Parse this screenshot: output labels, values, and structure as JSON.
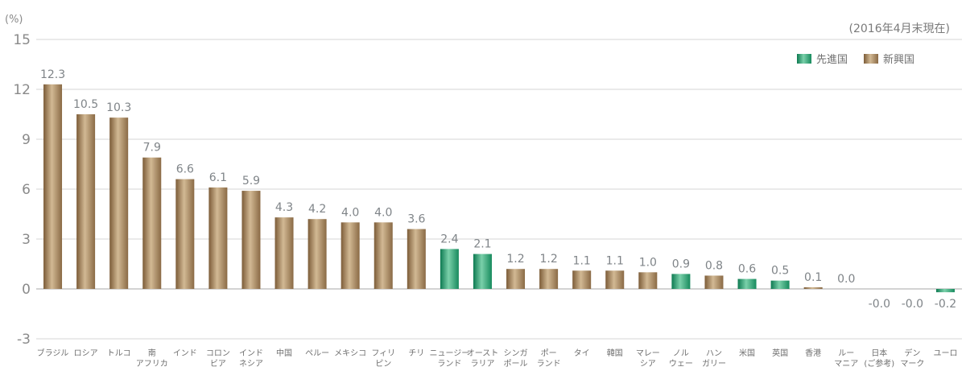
{
  "chart_data": {
    "type": "bar",
    "unit_label": "(%)",
    "note": "(2016年4月末現在)",
    "ylim": [
      -3,
      15
    ],
    "yticks": [
      "-3",
      "0",
      "3",
      "6",
      "9",
      "12",
      "15"
    ],
    "grid": true,
    "legend_position": "top-right",
    "legend": [
      {
        "name": "先進国",
        "color": "#2a9a6e"
      },
      {
        "name": "新興国",
        "color": "#9e7d55"
      }
    ],
    "categories": [
      {
        "label": [
          "ブラジル"
        ],
        "value": 12.3,
        "value_label": "12.3",
        "group": "新興国"
      },
      {
        "label": [
          "ロシア"
        ],
        "value": 10.5,
        "value_label": "10.5",
        "group": "新興国"
      },
      {
        "label": [
          "トルコ"
        ],
        "value": 10.3,
        "value_label": "10.3",
        "group": "新興国"
      },
      {
        "label": [
          "南",
          "アフリカ"
        ],
        "value": 7.9,
        "value_label": "7.9",
        "group": "新興国"
      },
      {
        "label": [
          "インド"
        ],
        "value": 6.6,
        "value_label": "6.6",
        "group": "新興国"
      },
      {
        "label": [
          "コロン",
          "ビア"
        ],
        "value": 6.1,
        "value_label": "6.1",
        "group": "新興国"
      },
      {
        "label": [
          "インド",
          "ネシア"
        ],
        "value": 5.9,
        "value_label": "5.9",
        "group": "新興国"
      },
      {
        "label": [
          "中国"
        ],
        "value": 4.3,
        "value_label": "4.3",
        "group": "新興国"
      },
      {
        "label": [
          "ペルー"
        ],
        "value": 4.2,
        "value_label": "4.2",
        "group": "新興国"
      },
      {
        "label": [
          "メキシコ"
        ],
        "value": 4.0,
        "value_label": "4.0",
        "group": "新興国"
      },
      {
        "label": [
          "フィリ",
          "ピン"
        ],
        "value": 4.0,
        "value_label": "4.0",
        "group": "新興国"
      },
      {
        "label": [
          "チリ"
        ],
        "value": 3.6,
        "value_label": "3.6",
        "group": "新興国"
      },
      {
        "label": [
          "ニュージー",
          "ランド"
        ],
        "value": 2.4,
        "value_label": "2.4",
        "group": "先進国"
      },
      {
        "label": [
          "オースト",
          "ラリア"
        ],
        "value": 2.1,
        "value_label": "2.1",
        "group": "先進国"
      },
      {
        "label": [
          "シンガ",
          "ポール"
        ],
        "value": 1.2,
        "value_label": "1.2",
        "group": "新興国"
      },
      {
        "label": [
          "ポー",
          "ランド"
        ],
        "value": 1.2,
        "value_label": "1.2",
        "group": "新興国"
      },
      {
        "label": [
          "タイ"
        ],
        "value": 1.1,
        "value_label": "1.1",
        "group": "新興国"
      },
      {
        "label": [
          "韓国"
        ],
        "value": 1.1,
        "value_label": "1.1",
        "group": "新興国"
      },
      {
        "label": [
          "マレー",
          "シア"
        ],
        "value": 1.0,
        "value_label": "1.0",
        "group": "新興国"
      },
      {
        "label": [
          "ノル",
          "ウェー"
        ],
        "value": 0.9,
        "value_label": "0.9",
        "group": "先進国"
      },
      {
        "label": [
          "ハン",
          "ガリー"
        ],
        "value": 0.8,
        "value_label": "0.8",
        "group": "新興国"
      },
      {
        "label": [
          "米国"
        ],
        "value": 0.6,
        "value_label": "0.6",
        "group": "先進国"
      },
      {
        "label": [
          "英国"
        ],
        "value": 0.5,
        "value_label": "0.5",
        "group": "先進国"
      },
      {
        "label": [
          "香港"
        ],
        "value": 0.1,
        "value_label": "0.1",
        "group": "新興国"
      },
      {
        "label": [
          "ルー",
          "マニア"
        ],
        "value": 0.0,
        "value_label": "0.0",
        "group": "新興国"
      },
      {
        "label": [
          "日本",
          "(ご参考)"
        ],
        "value": -0.0,
        "value_label": "-0.0",
        "group": "先進国"
      },
      {
        "label": [
          "デン",
          "マーク"
        ],
        "value": -0.0,
        "value_label": "-0.0",
        "group": "先進国"
      },
      {
        "label": [
          "ユーロ"
        ],
        "value": -0.2,
        "value_label": "-0.2",
        "group": "先進国"
      }
    ]
  }
}
